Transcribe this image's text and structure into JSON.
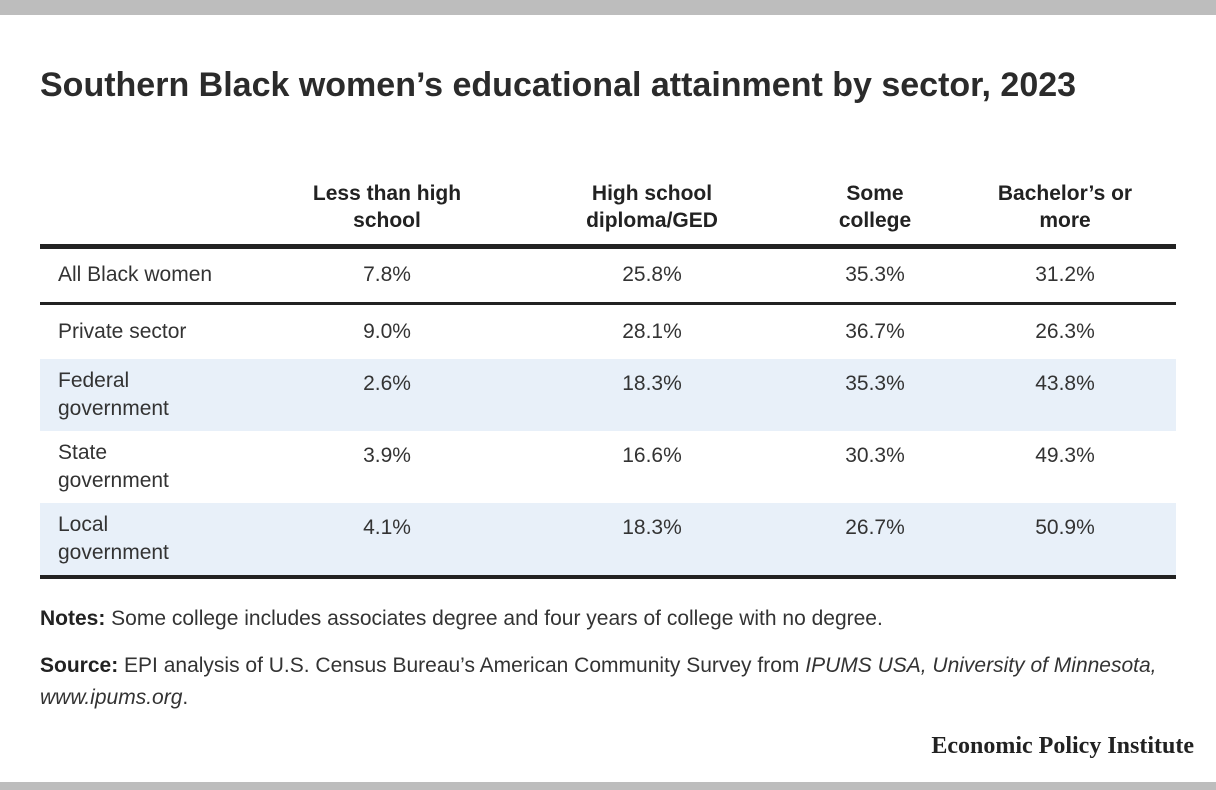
{
  "title": "Southern Black women’s educational attainment by sector, 2023",
  "table": {
    "headers": [
      "Less than high\nschool",
      "High school\ndiploma/GED",
      "Some\ncollege",
      "Bachelor’s or\nmore"
    ],
    "rows": [
      {
        "label": "All Black women",
        "values": [
          "7.8%",
          "25.8%",
          "35.3%",
          "31.2%"
        ]
      },
      {
        "label": "Private sector",
        "values": [
          "9.0%",
          "28.1%",
          "36.7%",
          "26.3%"
        ]
      },
      {
        "label": "Federal\ngovernment",
        "values": [
          "2.6%",
          "18.3%",
          "35.3%",
          "43.8%"
        ]
      },
      {
        "label": "State\ngovernment",
        "values": [
          "3.9%",
          "16.6%",
          "30.3%",
          "49.3%"
        ]
      },
      {
        "label": "Local\ngovernment",
        "values": [
          "4.1%",
          "18.3%",
          "26.7%",
          "50.9%"
        ]
      }
    ]
  },
  "notes": {
    "label": "Notes:",
    "text": " Some college includes associates degree and four years of college with no degree."
  },
  "source": {
    "label": "Source:",
    "text": " EPI analysis of U.S. Census Bureau’s American Community Survey from ",
    "italic": "IPUMS USA, University of Minnesota, www.ipums.org",
    "end": "."
  },
  "brand": "Economic Policy Institute",
  "colors": {
    "band": "#e8f0f9",
    "rule": "#222222",
    "frame": "#bdbdbd"
  }
}
